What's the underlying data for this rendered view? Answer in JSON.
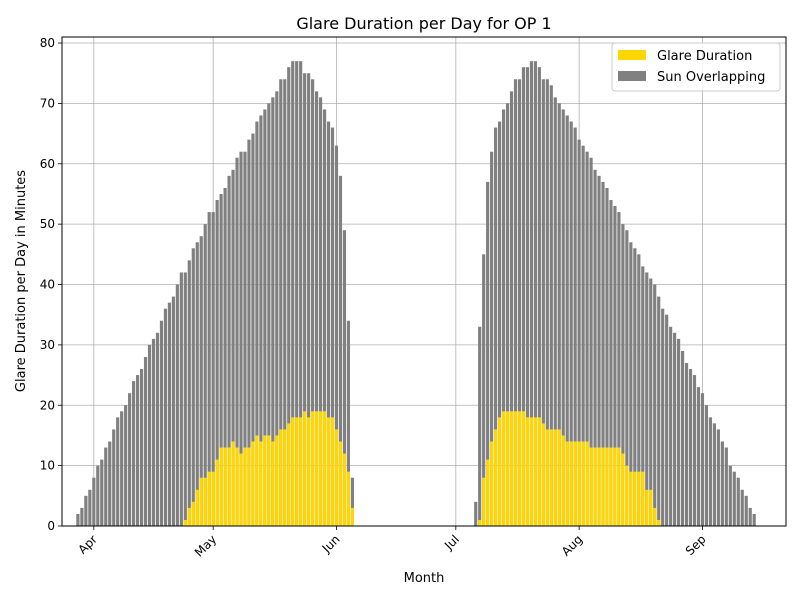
{
  "chart_data": {
    "type": "bar",
    "title": "Glare Duration per Day for OP 1",
    "xlabel": "Month",
    "ylabel": "Glare Duration per Day in Minutes",
    "ylim": [
      0,
      81
    ],
    "yticks": [
      0,
      10,
      20,
      30,
      40,
      50,
      60,
      70,
      80
    ],
    "xlim": [
      "2021-03-24",
      "2021-09-22"
    ],
    "xticks": [
      {
        "label": "Apr",
        "date": "2021-04-01"
      },
      {
        "label": "May",
        "date": "2021-05-01"
      },
      {
        "label": "Jun",
        "date": "2021-06-01"
      },
      {
        "label": "Jul",
        "date": "2021-07-01"
      },
      {
        "label": "Aug",
        "date": "2021-08-01"
      },
      {
        "label": "Sep",
        "date": "2021-09-01"
      }
    ],
    "grid": true,
    "legend_position": "top-right",
    "series": [
      {
        "name": "Sun Overlapping",
        "color": "#808080",
        "segments": [
          {
            "start": "2021-03-28",
            "values": [
              2,
              3,
              5,
              6,
              8,
              10,
              11,
              13,
              14,
              16,
              18,
              19,
              20,
              22,
              24,
              25,
              26,
              28,
              30,
              31,
              32,
              34,
              36,
              37,
              38,
              40,
              42,
              42,
              44,
              46,
              47,
              48,
              50,
              52,
              52,
              54,
              55,
              56,
              58,
              59,
              61,
              62,
              62,
              64,
              65,
              67,
              68,
              69,
              70,
              71,
              72,
              74,
              74,
              76,
              77,
              77,
              77,
              75,
              75,
              74,
              72,
              71,
              69,
              67,
              66,
              63,
              58,
              49,
              34,
              8
            ]
          },
          {
            "start": "2021-07-06",
            "values": [
              4,
              33,
              45,
              57,
              62,
              66,
              67,
              69,
              70,
              72,
              74,
              74,
              76,
              76,
              77,
              77,
              76,
              74,
              74,
              73,
              71,
              70,
              69,
              68,
              67,
              66,
              64,
              63,
              62,
              61,
              59,
              58,
              57,
              56,
              54,
              53,
              52,
              50,
              49,
              47,
              46,
              45,
              43,
              42,
              41,
              40,
              38,
              36,
              35,
              33,
              32,
              31,
              29,
              27,
              26,
              25,
              23,
              22,
              20,
              18,
              17,
              16,
              14,
              13,
              10,
              9,
              8,
              6,
              5,
              3,
              2
            ]
          }
        ]
      },
      {
        "name": "Glare Duration",
        "color": "#ffd700",
        "segments": [
          {
            "start": "2021-04-24",
            "values": [
              1,
              3,
              4,
              6,
              8,
              8,
              9,
              9,
              11,
              13,
              13,
              13,
              14,
              13,
              12,
              13,
              13,
              14,
              15,
              14,
              15,
              15,
              14,
              15,
              16,
              16,
              17,
              18,
              18,
              18,
              19,
              18,
              19,
              19,
              19,
              19,
              18,
              18,
              16,
              14,
              12,
              9,
              3
            ]
          },
          {
            "start": "2021-07-07",
            "values": [
              1,
              8,
              11,
              14,
              16,
              18,
              19,
              19,
              19,
              19,
              19,
              19,
              18,
              18,
              18,
              18,
              17,
              16,
              16,
              16,
              16,
              15,
              14,
              14,
              14,
              14,
              14,
              14,
              13,
              13,
              13,
              13,
              13,
              13,
              13,
              13,
              12,
              10,
              9,
              9,
              9,
              9,
              6,
              6,
              3,
              1
            ]
          }
        ]
      }
    ]
  }
}
